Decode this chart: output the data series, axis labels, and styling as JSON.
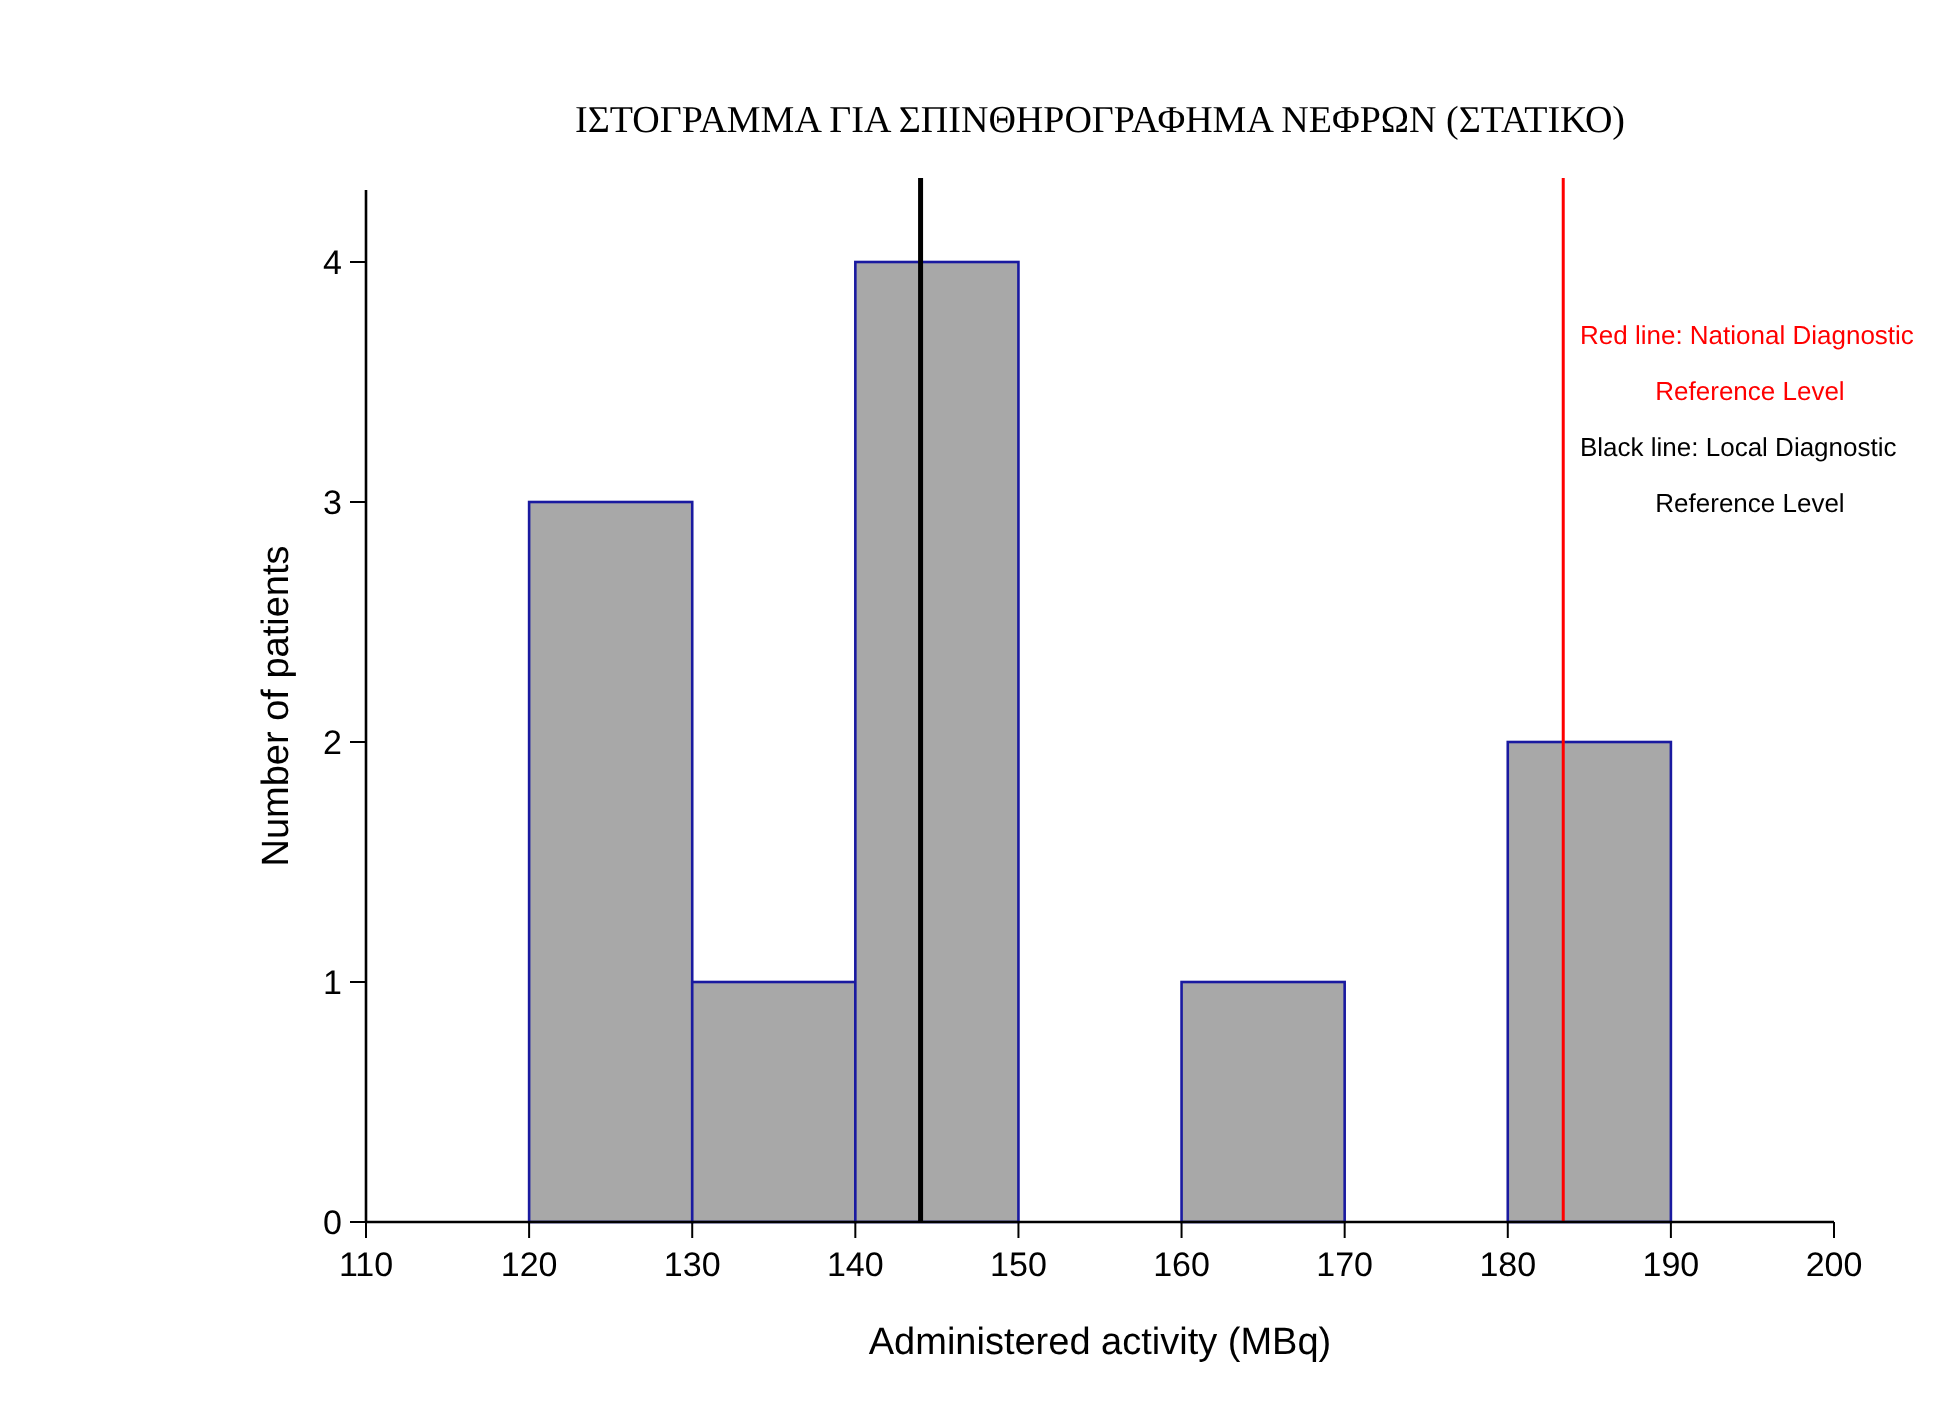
{
  "chart_data": {
    "type": "histogram",
    "title": "ΙΣΤΟΓΡΑΜΜΑ ΓΙΑ ΣΠΙΝΘΗΡΟΓΡΑΦΗΜΑ ΝΕΦΡΩΝ (ΣΤΑΤΙΚΟ)",
    "xlabel": "Administered activity (MBq)",
    "ylabel": "Number of patients",
    "bins": [
      120,
      130,
      140,
      150,
      160,
      170,
      180,
      190
    ],
    "values": [
      3,
      1,
      4,
      0,
      1,
      0,
      2
    ],
    "color": "#a8a8a8",
    "xlim": [
      110,
      200
    ],
    "xticks": [
      110,
      120,
      130,
      140,
      150,
      160,
      170,
      180,
      190,
      200
    ],
    "ylim": [
      0,
      4.3
    ],
    "yticks": [
      0,
      1,
      2,
      3,
      4
    ],
    "grid": false,
    "ref_lines": [
      {
        "axis": "x",
        "value": 183.4,
        "label": "Red line: National Diagnostic Reference Level",
        "color": "#ff0000"
      },
      {
        "axis": "x",
        "value": 144,
        "label": "Black line: Local Diagnostic Reference Level",
        "color": "#000000"
      }
    ]
  }
}
